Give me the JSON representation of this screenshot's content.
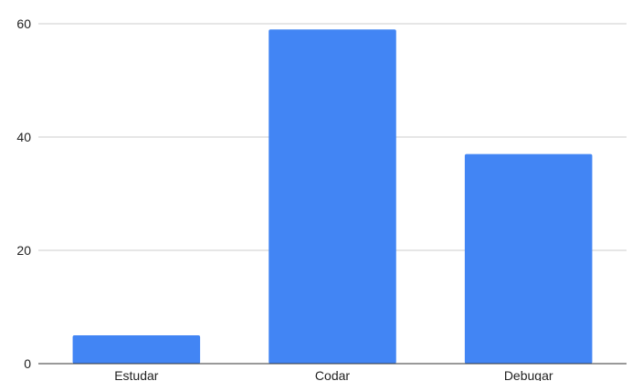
{
  "chart_data": {
    "type": "bar",
    "categories": [
      "Estudar",
      "Codar",
      "Debugar"
    ],
    "values": [
      5,
      59,
      37
    ],
    "ylim": [
      0,
      60
    ],
    "yticks": [
      0,
      20,
      40,
      60
    ],
    "grid": true,
    "bar_color": "#4285F4",
    "grid_color": "#cccccc",
    "axis_color": "#333333"
  }
}
